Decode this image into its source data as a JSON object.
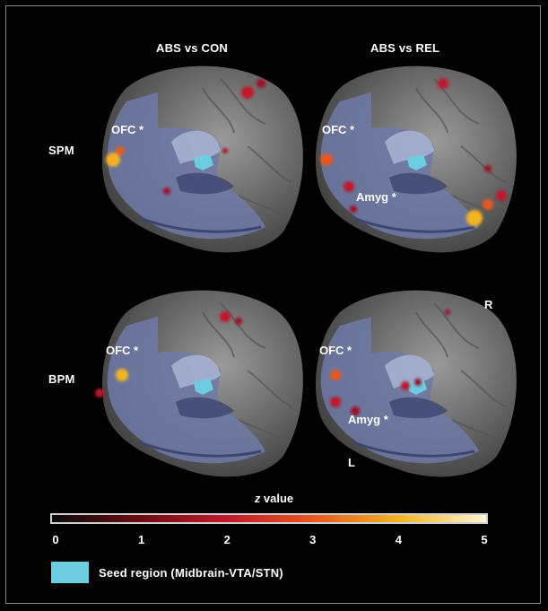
{
  "columns": [
    "ABS vs CON",
    "ABS vs REL"
  ],
  "rows": [
    "SPM",
    "BPM"
  ],
  "panels": [
    {
      "tags": [
        "OFC *"
      ]
    },
    {
      "tags": [
        "OFC *",
        "Amyg *"
      ]
    },
    {
      "tags": [
        "OFC *"
      ]
    },
    {
      "tags": [
        "OFC *",
        "Amyg *"
      ]
    }
  ],
  "orientation": {
    "right": "R",
    "left": "L"
  },
  "colorbar": {
    "title_italic": "z",
    "title_rest": " value",
    "ticks": [
      "0",
      "1",
      "2",
      "3",
      "4",
      "5"
    ],
    "colors": [
      "#0a0a0a",
      "#6a0d12",
      "#c2182a",
      "#e8561e",
      "#f4b420",
      "#fff5d6"
    ]
  },
  "legend": {
    "label": "Seed region (Midbrain-VTA/STN)",
    "color": "#6ccde0"
  },
  "colors": {
    "brain_gray": "#7a7a7a",
    "slice_blue": "#6f7aa8",
    "seed": "#6ccde0"
  }
}
